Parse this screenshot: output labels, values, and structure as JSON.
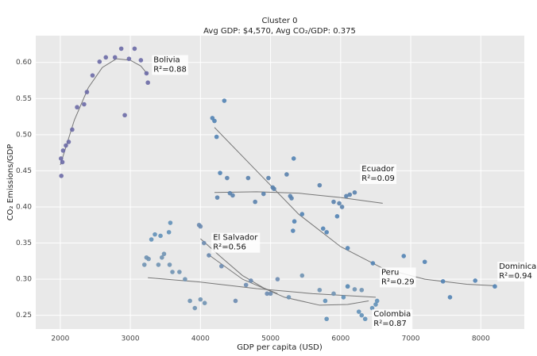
{
  "chart_data": {
    "type": "scatter",
    "title": "Cluster 0",
    "subtitle": "Avg GDP: $4,570, Avg CO₂/GDP: 0.375",
    "x_label": "GDP per capita (USD)",
    "y_label": "CO₂ Emissions/GDP",
    "grid": true,
    "xlim": [
      1650,
      8620
    ],
    "ylim": [
      0.231,
      0.637
    ],
    "xticks": [
      2000,
      3000,
      4000,
      5000,
      6000,
      7000,
      8000
    ],
    "yticks": [
      0.25,
      {
        "value": 0.3,
        "label": "0.30"
      },
      0.35,
      {
        "value": 0.4,
        "label": "0.40"
      },
      0.45,
      {
        "value": 0.5,
        "label": "0.50"
      },
      0.55,
      {
        "value": 0.6,
        "label": "0.60"
      }
    ],
    "series": [
      {
        "name": "Bolivia",
        "r2_label": "R²=0.88",
        "color": "#6b6aa6",
        "x": [
          2010,
          2015,
          2030,
          2040,
          2080,
          2120,
          2170,
          2240,
          2340,
          2380,
          2460,
          2560,
          2650,
          2780,
          2870,
          2920,
          2980,
          3060,
          3150,
          3230,
          3250
        ],
        "values": [
          0.467,
          0.443,
          0.462,
          0.478,
          0.485,
          0.49,
          0.507,
          0.538,
          0.542,
          0.559,
          0.582,
          0.601,
          0.607,
          0.607,
          0.619,
          0.527,
          0.605,
          0.619,
          0.603,
          0.585,
          0.572
        ],
        "fit_x": [
          2000,
          2200,
          2400,
          2600,
          2800,
          3000,
          3150,
          3250
        ],
        "fit_y": [
          0.458,
          0.52,
          0.565,
          0.593,
          0.605,
          0.603,
          0.595,
          0.583
        ]
      },
      {
        "name": "Ecuador",
        "r2_label": "R²=0.09",
        "color": "#5a82ad",
        "x": [
          4240,
          4380,
          4420,
          4460,
          4680,
          4780,
          4900,
          4970,
          5030,
          5050,
          5230,
          5280,
          5300,
          5700,
          5900,
          5980,
          6020,
          6080,
          6130,
          6200
        ],
        "values": [
          0.413,
          0.44,
          0.419,
          0.416,
          0.44,
          0.407,
          0.418,
          0.44,
          0.427,
          0.425,
          0.445,
          0.415,
          0.412,
          0.43,
          0.407,
          0.405,
          0.4,
          0.415,
          0.417,
          0.42
        ],
        "fit_x": [
          4200,
          4800,
          5400,
          6000,
          6600
        ],
        "fit_y": [
          0.42,
          0.421,
          0.419,
          0.413,
          0.405
        ]
      },
      {
        "name": "Dominican",
        "r2_label": "R²=0.94",
        "color": "#5283b4",
        "x": [
          4170,
          4200,
          4230,
          4340,
          4280,
          5330,
          5340,
          5320,
          5450,
          5750,
          5800,
          5950,
          6100,
          6460,
          6900,
          7200,
          7460,
          7560,
          7920,
          8200
        ],
        "values": [
          0.523,
          0.519,
          0.497,
          0.547,
          0.447,
          0.467,
          0.38,
          0.367,
          0.39,
          0.37,
          0.365,
          0.387,
          0.343,
          0.322,
          0.332,
          0.324,
          0.297,
          0.275,
          0.298,
          0.29
        ],
        "fit_x": [
          4200,
          4800,
          5400,
          6000,
          6600,
          7200,
          7800,
          8200
        ],
        "fit_y": [
          0.51,
          0.45,
          0.39,
          0.345,
          0.315,
          0.3,
          0.293,
          0.291
        ]
      },
      {
        "name": "El Salvador",
        "r2_label": "R²=0.56",
        "color": "#6b8bb0",
        "x": [
          3980,
          4000,
          4050,
          4120,
          4300,
          4500,
          4650,
          4720,
          4950,
          5000,
          5100
        ],
        "values": [
          0.375,
          0.373,
          0.35,
          0.333,
          0.318,
          0.27,
          0.292,
          0.298,
          0.28,
          0.28,
          0.3
        ],
        "fit_x": [
          4000,
          4300,
          4600,
          4900,
          5100
        ],
        "fit_y": [
          0.356,
          0.33,
          0.305,
          0.288,
          0.28
        ]
      },
      {
        "name": "Peru",
        "r2_label": "R²=0.29",
        "color": "#6f92b3",
        "x": [
          3200,
          3230,
          3260,
          3400,
          3450,
          3480,
          3560,
          3600,
          3700,
          3780,
          3850,
          3920,
          4000,
          4060,
          5260,
          5450,
          5700,
          5900,
          6100,
          6200,
          6300
        ],
        "values": [
          0.32,
          0.33,
          0.328,
          0.32,
          0.33,
          0.335,
          0.32,
          0.31,
          0.31,
          0.3,
          0.27,
          0.26,
          0.272,
          0.267,
          0.275,
          0.305,
          0.285,
          0.28,
          0.29,
          0.286,
          0.285
        ],
        "fit_x": [
          3250,
          4000,
          4800,
          5600,
          6500
        ],
        "fit_y": [
          0.302,
          0.296,
          0.287,
          0.28,
          0.275
        ]
      },
      {
        "name": "Colombia",
        "r2_label": "R²=0.87",
        "color": "#6190b8",
        "x": [
          3300,
          3350,
          3430,
          3550,
          3570,
          5800,
          5780,
          6040,
          6100,
          6260,
          6300,
          6350,
          6450,
          6500,
          6520
        ],
        "values": [
          0.355,
          0.362,
          0.36,
          0.365,
          0.378,
          0.245,
          0.27,
          0.275,
          0.29,
          0.255,
          0.25,
          0.245,
          0.26,
          0.265,
          0.27
        ],
        "fit_x": [
          4100,
          4600,
          5200,
          5700,
          6100,
          6400
        ],
        "fit_y": [
          0.335,
          0.3,
          0.275,
          0.264,
          0.265,
          0.27
        ]
      }
    ]
  }
}
